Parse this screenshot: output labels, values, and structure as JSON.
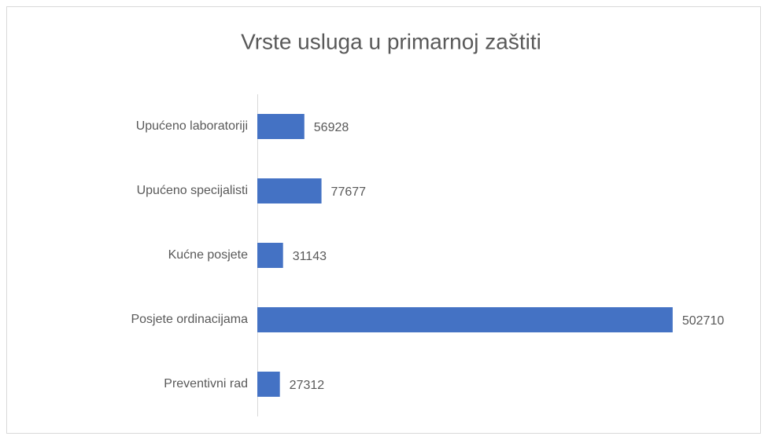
{
  "chart_data": {
    "type": "hbar",
    "title": "Vrste usluga u primarnoj zaštiti",
    "categories": [
      "Upućeno laboratoriji",
      "Upućeno specijalisti",
      "Kućne posjete",
      "Posjete ordinacijama",
      "Preventivni rad"
    ],
    "values": [
      56928,
      77677,
      31143,
      502710,
      27312
    ],
    "color": "#4472c4",
    "xlim": [
      0,
      600000
    ]
  }
}
